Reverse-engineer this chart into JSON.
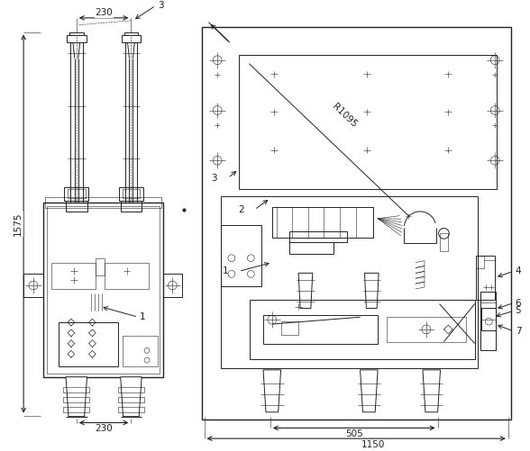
{
  "bg_color": "#ffffff",
  "line_color": "#222222",
  "fig_width": 5.88,
  "fig_height": 5.01,
  "dpi": 100,
  "annotations": {
    "dim_top_230": "230",
    "dim_bottom_230": "230",
    "dim_height_1575": "1575",
    "dim_505": "505",
    "dim_1150": "1150",
    "label_1_left": "1",
    "label_3_left": "3",
    "label_1_right": "1",
    "label_2_right": "2",
    "label_3_right": "3",
    "label_4_right": "4",
    "label_5_right": "5",
    "label_6_right": "6",
    "label_7_right": "7",
    "radius_label": "R1095"
  }
}
